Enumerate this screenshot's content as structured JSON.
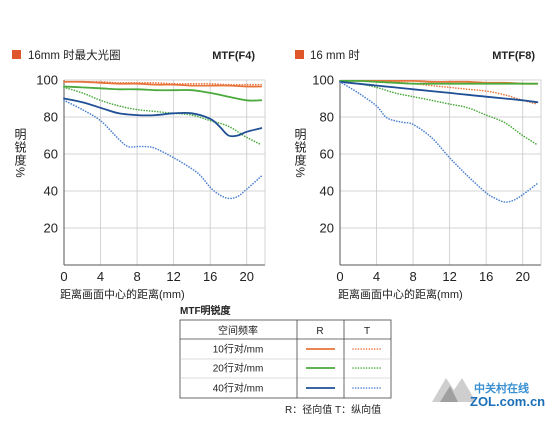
{
  "colors": {
    "orange": "#e8743b",
    "green": "#4aaa3c",
    "blue": "#1f4f95",
    "blue_dotted": "#4a7fd0",
    "grid": "#c8c8c8",
    "legend_square": "#e0562b"
  },
  "chart_data": [
    {
      "type": "line",
      "title": "16mm 时最大光圈",
      "label_right": "MTF(F4)",
      "xlabel": "距离画面中心的距离(mm)",
      "ylabel": "明锐度%",
      "xlim": [
        0,
        22
      ],
      "ylim": [
        0,
        100
      ],
      "xticks": [
        "0",
        "4",
        "8",
        "12",
        "16",
        "20"
      ],
      "yticks": [
        "20",
        "40",
        "60",
        "80",
        "100"
      ],
      "grid": true,
      "series": [
        {
          "key": "r10",
          "style": "solid",
          "color": "orange",
          "x": [
            0,
            2,
            4,
            6,
            8,
            10,
            12,
            14,
            16,
            18,
            20,
            21.6
          ],
          "y": [
            99,
            99,
            98.5,
            98,
            98,
            97.5,
            97.5,
            97,
            97,
            97,
            96.5,
            96.5
          ]
        },
        {
          "key": "t10",
          "style": "dotted",
          "color": "orange",
          "x": [
            0,
            2,
            4,
            6,
            8,
            10,
            12,
            14,
            16,
            18,
            20,
            21.6
          ],
          "y": [
            99,
            99,
            99,
            98.5,
            98.5,
            98.5,
            98,
            98,
            98,
            97.5,
            97.5,
            97.5
          ]
        },
        {
          "key": "r20",
          "style": "solid",
          "color": "green",
          "x": [
            0,
            2,
            4,
            6,
            8,
            10,
            12,
            14,
            16,
            18,
            20,
            21.6
          ],
          "y": [
            96.5,
            96,
            95.5,
            95,
            95,
            94.5,
            94.5,
            94.5,
            93,
            91,
            89,
            89
          ]
        },
        {
          "key": "t20",
          "style": "dotted",
          "color": "green",
          "x": [
            0,
            2,
            4,
            6,
            8,
            10,
            12,
            14,
            16,
            18,
            20,
            21.6
          ],
          "y": [
            96,
            93,
            89,
            86,
            84,
            83,
            82,
            81,
            78,
            75,
            69,
            65
          ]
        },
        {
          "key": "r40",
          "style": "solid",
          "color": "blue",
          "x": [
            0,
            2,
            4,
            6,
            8,
            10,
            12,
            14,
            16,
            17,
            18,
            19,
            20,
            21.6
          ],
          "y": [
            90,
            88,
            85,
            82,
            81,
            81,
            82,
            82,
            79,
            75,
            70,
            70,
            72,
            74
          ]
        },
        {
          "key": "t40",
          "style": "dotted",
          "color": "blue_dotted",
          "x": [
            0,
            2,
            4,
            6,
            7,
            8,
            9,
            10,
            12,
            14,
            15,
            16,
            17,
            18,
            19,
            20,
            21.6
          ],
          "y": [
            89,
            84,
            78,
            68,
            64,
            64,
            64,
            63,
            58,
            52,
            48,
            42,
            38,
            36,
            37,
            41,
            48
          ]
        }
      ]
    },
    {
      "type": "line",
      "title": "16 mm 时",
      "label_right": "MTF(F8)",
      "xlabel": "距离画面中心的距离(mm)",
      "ylabel": "明锐度%",
      "xlim": [
        0,
        22
      ],
      "ylim": [
        0,
        100
      ],
      "xticks": [
        "0",
        "4",
        "8",
        "12",
        "16",
        "20"
      ],
      "yticks": [
        "20",
        "40",
        "60",
        "80",
        "100"
      ],
      "grid": true,
      "series": [
        {
          "key": "r10",
          "style": "solid",
          "color": "orange",
          "x": [
            0,
            2,
            4,
            6,
            8,
            10,
            12,
            14,
            16,
            18,
            20,
            21.6
          ],
          "y": [
            99.5,
            99.5,
            99.5,
            99.5,
            99.5,
            99,
            99,
            99,
            98.5,
            98.5,
            98,
            98
          ]
        },
        {
          "key": "t10",
          "style": "dotted",
          "color": "orange",
          "x": [
            0,
            2,
            4,
            6,
            8,
            10,
            12,
            14,
            16,
            18,
            20,
            21.6
          ],
          "y": [
            99.5,
            99.5,
            99,
            99,
            98,
            97,
            96,
            95,
            94,
            92,
            89,
            87
          ]
        },
        {
          "key": "r20",
          "style": "solid",
          "color": "green",
          "x": [
            0,
            2,
            4,
            6,
            8,
            10,
            12,
            14,
            16,
            18,
            20,
            21.6
          ],
          "y": [
            99.5,
            99.5,
            99,
            98.5,
            98,
            98,
            98,
            98,
            98,
            98,
            98,
            98
          ]
        },
        {
          "key": "t20",
          "style": "dotted",
          "color": "green",
          "x": [
            0,
            2,
            4,
            6,
            8,
            10,
            12,
            14,
            16,
            18,
            20,
            21.6
          ],
          "y": [
            99,
            98,
            96,
            93,
            91,
            89,
            87,
            85,
            81,
            77,
            70,
            65
          ]
        },
        {
          "key": "r40",
          "style": "solid",
          "color": "blue",
          "x": [
            0,
            2,
            4,
            6,
            8,
            10,
            12,
            14,
            16,
            18,
            20,
            21.6
          ],
          "y": [
            99,
            98,
            97,
            96,
            95,
            94,
            93,
            92,
            91,
            90,
            89,
            88
          ]
        },
        {
          "key": "t40",
          "style": "dotted",
          "color": "blue_dotted",
          "x": [
            0,
            2,
            4,
            5,
            6,
            7,
            8,
            10,
            12,
            14,
            16,
            17,
            18,
            19,
            20,
            21.6
          ],
          "y": [
            99,
            93,
            86,
            80,
            78,
            77,
            76,
            69,
            58,
            48,
            39,
            36,
            34,
            35,
            38,
            44
          ]
        }
      ]
    }
  ],
  "legend_table": {
    "caption": "MTF明锐度",
    "header": [
      "空间频率",
      "R",
      "T"
    ],
    "rows": [
      {
        "label": "10行对/mm",
        "color": "orange"
      },
      {
        "label": "20行对/mm",
        "color": "green"
      },
      {
        "label": "40行对/mm",
        "color": "blue"
      }
    ],
    "note": "R：径向值   T：纵向值"
  },
  "watermark": {
    "cn": "中关村在线",
    "en": "ZOL.com.cn"
  }
}
